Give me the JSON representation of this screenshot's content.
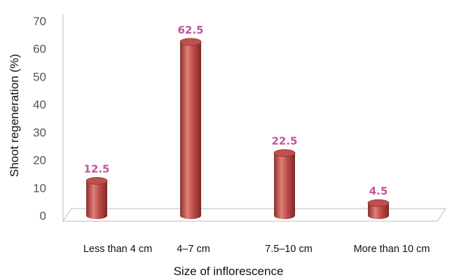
{
  "chart_data": {
    "type": "bar",
    "style": "3d-cylinder",
    "categories": [
      "Less than 4 cm",
      "4–7 cm",
      "7.5–10 cm",
      "More than 10 cm"
    ],
    "values": [
      12.5,
      62.5,
      22.5,
      4.5
    ],
    "data_labels": [
      "12.5",
      "62.5",
      "22.5",
      "4.5"
    ],
    "xlabel": "Size of inflorescence",
    "ylabel": "Shoot regeneration (%)",
    "ylim": [
      0,
      70
    ],
    "yticks": [
      "0",
      "10",
      "20",
      "30",
      "40",
      "50",
      "60",
      "70"
    ],
    "grid": false,
    "legend": "none",
    "colors": {
      "bar": "#c0504d",
      "bar_dark": "#8c2e2b",
      "bar_light": "#e07f7a",
      "data_label": "#c0569b",
      "axis": "#bcbcbc"
    }
  }
}
